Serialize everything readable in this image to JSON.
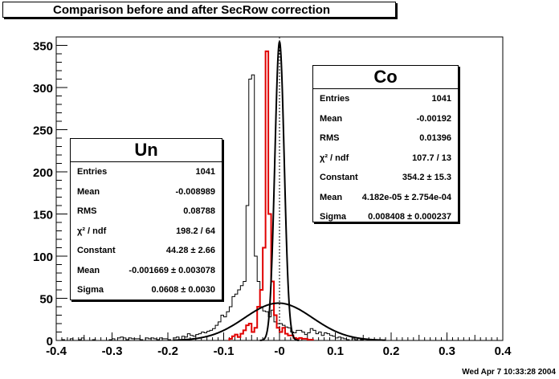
{
  "title": "Comparison before and after SecRow correction",
  "date": "Wed Apr  7 10:33:28 2004",
  "chart_data": {
    "type": "histogram",
    "xlim": [
      -0.4,
      0.4
    ],
    "ylim": [
      0,
      360
    ],
    "xticks": [
      "-0.4",
      "-0.3",
      "-0.2",
      "-0.1",
      "-0",
      "0.1",
      "0.2",
      "0.3",
      "0.4"
    ],
    "yticks": [
      "0",
      "50",
      "100",
      "150",
      "200",
      "250",
      "300",
      "350"
    ],
    "colors": {
      "un": "#000000",
      "co": "#e00000",
      "fit": "#000000"
    },
    "bin_width": 0.005,
    "un": {
      "x0": -0.4,
      "counts": [
        0,
        0,
        1,
        0,
        0,
        2,
        0,
        0,
        1,
        3,
        0,
        0,
        0,
        1,
        0,
        0,
        0,
        0,
        0,
        1,
        2,
        0,
        3,
        4,
        3,
        1,
        3,
        2,
        2,
        2,
        1,
        0,
        3,
        2,
        3,
        2,
        1,
        3,
        2,
        2,
        1,
        0,
        3,
        4,
        1,
        5,
        4,
        8,
        6,
        5,
        7,
        8,
        10,
        9,
        11,
        12,
        14,
        18,
        22,
        30,
        28,
        34,
        40,
        52,
        55,
        60,
        65,
        70,
        160,
        310,
        315,
        100,
        70,
        40,
        35,
        34,
        28,
        36,
        22,
        20,
        20,
        18,
        16,
        15,
        10,
        9,
        12,
        12,
        10,
        7,
        9,
        14,
        12,
        8,
        10,
        6,
        9,
        8,
        6,
        5,
        3,
        4,
        3,
        2,
        1,
        0,
        2,
        1,
        0,
        1,
        0,
        0,
        1,
        0,
        0,
        0,
        0,
        0,
        0,
        0,
        0,
        0,
        0,
        0,
        0,
        0,
        0,
        0,
        0,
        0,
        0,
        0,
        0,
        0,
        0,
        0,
        0,
        0,
        0,
        0,
        0,
        0,
        0,
        0,
        0,
        0,
        0,
        0,
        0,
        0,
        0,
        0,
        0,
        0,
        0,
        0,
        0,
        0,
        0,
        0
      ]
    },
    "co": {
      "x0": -0.09,
      "counts": [
        2,
        5,
        7,
        4,
        8,
        12,
        18,
        20,
        10,
        15,
        40,
        60,
        110,
        343,
        150,
        70,
        30,
        15,
        10,
        15,
        8,
        6,
        6,
        3,
        2,
        3,
        2,
        2,
        1,
        1
      ]
    },
    "fit_un": {
      "constant": 44.28,
      "mean": -0.001669,
      "sigma": 0.0608
    },
    "fit_co": {
      "constant": 354.2,
      "mean": 4.182e-05,
      "sigma": 0.008408
    }
  },
  "stats_un": {
    "title": "Un",
    "rows": [
      {
        "label": "Entries",
        "value": "1041"
      },
      {
        "label": "Mean",
        "value": "-0.008989"
      },
      {
        "label": "RMS",
        "value": "0.08788"
      },
      {
        "label": "χ² / ndf",
        "value": "198.2 / 64"
      },
      {
        "label": "Constant",
        "value": "44.28 ± 2.66"
      },
      {
        "label": "Mean",
        "value": "-0.001669 ± 0.003078"
      },
      {
        "label": "Sigma",
        "value": "0.0608 ± 0.0030"
      }
    ]
  },
  "stats_co": {
    "title": "Co",
    "rows": [
      {
        "label": "Entries",
        "value": "1041"
      },
      {
        "label": "Mean",
        "value": "-0.00192"
      },
      {
        "label": "RMS",
        "value": "0.01396"
      },
      {
        "label": "χ² / ndf",
        "value": "107.7 / 13"
      },
      {
        "label": "Constant",
        "value": "354.2 ± 15.3"
      },
      {
        "label": "Mean",
        "value": "4.182e-05 ± 2.754e-04"
      },
      {
        "label": "Sigma",
        "value": "0.008408 ± 0.000237"
      }
    ]
  }
}
